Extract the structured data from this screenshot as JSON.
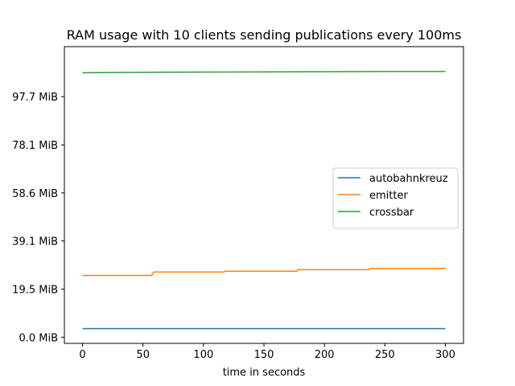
{
  "chart_data": {
    "type": "line",
    "title": "RAM usage with 10 clients sending publications every 100ms",
    "xlabel": "time in seconds",
    "ylabel": "",
    "xlim": [
      -15,
      315
    ],
    "ylim": [
      -2.5,
      118
    ],
    "x_ticks": [
      0,
      50,
      100,
      150,
      200,
      250,
      300
    ],
    "x_tick_labels": [
      "0",
      "50",
      "100",
      "150",
      "200",
      "250",
      "300"
    ],
    "y_ticks": [
      0.0,
      19.5,
      39.1,
      58.6,
      78.1,
      97.7
    ],
    "y_tick_labels": [
      "0.0 MiB",
      "19.5 MiB",
      "39.1 MiB",
      "58.6 MiB",
      "78.1 MiB",
      "97.7 MiB"
    ],
    "legend_position": "center-right",
    "grid": false,
    "series": [
      {
        "name": "autobahnkreuz",
        "color": "#1f77b4",
        "x": [
          0,
          300
        ],
        "y": [
          3.5,
          3.5
        ]
      },
      {
        "name": "emitter",
        "color": "#ff7f0e",
        "x": [
          0,
          57,
          59,
          117,
          118,
          177,
          178,
          237,
          238,
          298,
          300
        ],
        "y": [
          25.1,
          25.1,
          26.5,
          26.5,
          26.8,
          26.8,
          27.4,
          27.4,
          27.9,
          27.9,
          28.2
        ]
      },
      {
        "name": "crossbar",
        "color": "#2ca02c",
        "x": [
          0,
          15,
          75,
          135,
          195,
          255,
          300
        ],
        "y": [
          107.4,
          107.5,
          107.6,
          107.7,
          107.8,
          107.9,
          107.9
        ]
      }
    ]
  }
}
